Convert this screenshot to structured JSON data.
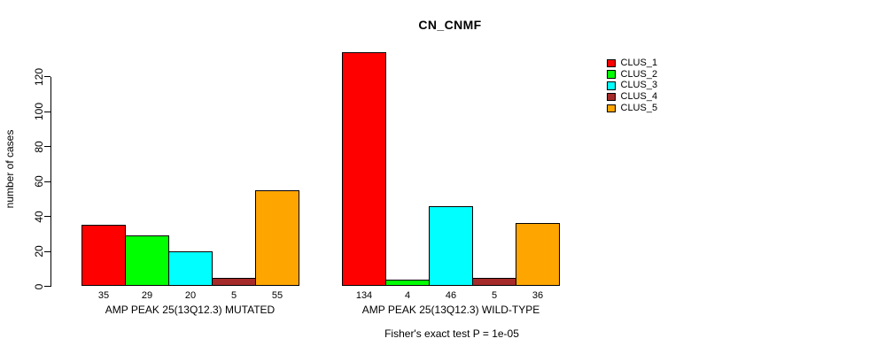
{
  "chart_data": {
    "type": "bar",
    "title": "CN_CNMF",
    "ylabel": "number of cases",
    "xlabel": "",
    "ylim": [
      0,
      120
    ],
    "yticks": [
      0,
      20,
      40,
      60,
      80,
      100,
      120
    ],
    "grid": false,
    "legend_position": "topright",
    "categories": [
      "AMP PEAK 25(13Q12.3) MUTATED",
      "AMP PEAK 25(13Q12.3) WILD-TYPE"
    ],
    "series": [
      {
        "name": "CLUS_1",
        "color": "#FF0000",
        "values": [
          35,
          134
        ]
      },
      {
        "name": "CLUS_2",
        "color": "#00FF00",
        "values": [
          29,
          4
        ]
      },
      {
        "name": "CLUS_3",
        "color": "#00FFFF",
        "values": [
          20,
          46
        ]
      },
      {
        "name": "CLUS_4",
        "color": "#A52A2A",
        "values": [
          5,
          5
        ]
      },
      {
        "name": "CLUS_5",
        "color": "#FFA500",
        "values": [
          55,
          36
        ]
      }
    ],
    "bar_value_labels": [
      [
        35,
        29,
        20,
        5,
        55
      ],
      [
        134,
        4,
        46,
        5,
        36
      ]
    ],
    "annotation": "Fisher's exact test P = 1e-05"
  }
}
